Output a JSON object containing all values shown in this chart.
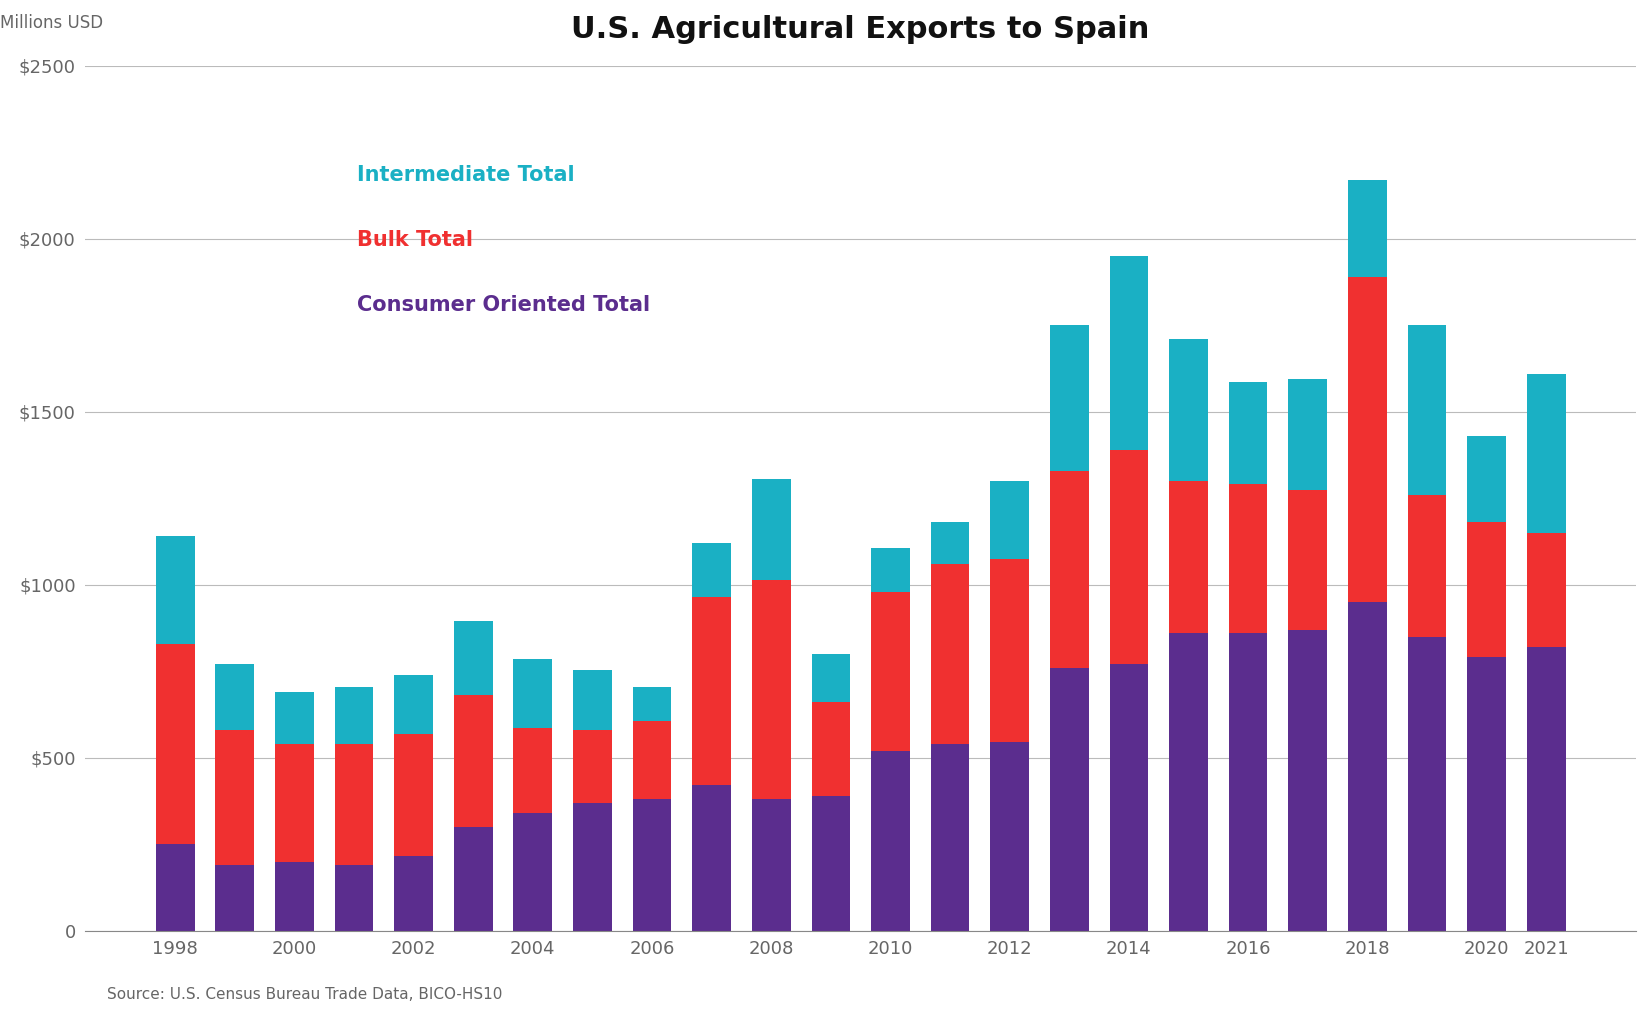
{
  "title": "U.S. Agricultural Exports to Spain",
  "ylabel": "Millions USD",
  "source": "Source: U.S. Census Bureau Trade Data, BICO-HS10",
  "years": [
    1998,
    1999,
    2000,
    2001,
    2002,
    2003,
    2004,
    2005,
    2006,
    2007,
    2008,
    2009,
    2010,
    2011,
    2012,
    2013,
    2014,
    2015,
    2016,
    2017,
    2018,
    2019,
    2020,
    2021
  ],
  "consumer_oriented": [
    250,
    190,
    200,
    190,
    215,
    300,
    340,
    370,
    380,
    420,
    380,
    390,
    520,
    540,
    545,
    760,
    770,
    860,
    860,
    870,
    950,
    850,
    790,
    820
  ],
  "bulk": [
    580,
    390,
    340,
    350,
    355,
    380,
    245,
    210,
    225,
    545,
    635,
    270,
    460,
    520,
    530,
    570,
    620,
    440,
    430,
    405,
    940,
    410,
    390,
    330
  ],
  "intermediate": [
    310,
    190,
    150,
    165,
    170,
    215,
    200,
    175,
    100,
    155,
    290,
    140,
    125,
    120,
    225,
    420,
    560,
    410,
    295,
    320,
    280,
    490,
    250,
    460
  ],
  "color_consumer": "#5b2d8e",
  "color_bulk": "#f03030",
  "color_intermediate": "#1ab0c4",
  "ylim": [
    0,
    2500
  ],
  "yticks": [
    0,
    500,
    1000,
    1500,
    2000,
    2500
  ],
  "ytick_labels": [
    "0",
    "$500",
    "$1000",
    "$1500",
    "$2000",
    "$2500"
  ],
  "title_fontsize": 22,
  "legend_fontsize": 15,
  "tick_fontsize": 13,
  "source_fontsize": 11
}
